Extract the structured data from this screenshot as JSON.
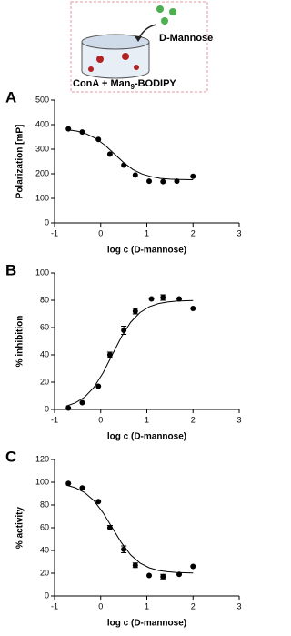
{
  "schematic": {
    "ligand_label": "D-Mannose",
    "complex_label": "ConA + Man",
    "complex_subscript": "9",
    "complex_suffix": "-BODIPY"
  },
  "chart_data": [
    {
      "type": "scatter",
      "panel": "A",
      "xlabel": "log c (D-mannose)",
      "ylabel": "Polarization [mP]",
      "color": "#000000",
      "xlim": [
        -1,
        3
      ],
      "xticks": [
        -1,
        0,
        1,
        2,
        3
      ],
      "ylim": [
        0,
        500
      ],
      "yticks": [
        0,
        100,
        200,
        300,
        400,
        500
      ],
      "x": [
        -0.7,
        -0.4,
        -0.05,
        0.2,
        0.5,
        0.75,
        1.05,
        1.35,
        1.65,
        2.0
      ],
      "values": [
        383,
        370,
        340,
        280,
        235,
        195,
        170,
        168,
        170,
        190
      ],
      "errors": [
        null,
        null,
        null,
        null,
        null,
        null,
        null,
        null,
        null,
        null
      ],
      "fit": {
        "x": [
          -0.7,
          -0.5,
          -0.3,
          -0.1,
          0.1,
          0.3,
          0.5,
          0.7,
          0.9,
          1.1,
          1.3,
          1.5,
          1.7,
          2.0
        ],
        "values": [
          379,
          373,
          362,
          343,
          315,
          280,
          245,
          217,
          199,
          188,
          181,
          178,
          177,
          176
        ]
      }
    },
    {
      "type": "scatter",
      "panel": "B",
      "xlabel": "log c (D-mannose)",
      "ylabel": "% inhibition",
      "color": "#000000",
      "xlim": [
        -1,
        3
      ],
      "xticks": [
        -1,
        0,
        1,
        2,
        3
      ],
      "ylim": [
        0,
        100
      ],
      "yticks": [
        0,
        20,
        40,
        60,
        80,
        100
      ],
      "x": [
        -0.7,
        -0.4,
        -0.05,
        0.2,
        0.5,
        0.75,
        1.1,
        1.35,
        1.7,
        2.0
      ],
      "values": [
        1,
        5,
        17,
        40,
        58,
        72,
        81,
        82,
        81,
        74
      ],
      "errors": [
        null,
        null,
        null,
        2,
        3,
        2,
        null,
        2,
        null,
        null
      ],
      "fit": {
        "x": [
          -0.75,
          -0.55,
          -0.35,
          -0.15,
          0.05,
          0.25,
          0.45,
          0.65,
          0.85,
          1.05,
          1.25,
          1.45,
          1.65,
          2.0
        ],
        "values": [
          2.4,
          4.8,
          9.0,
          16.0,
          26.7,
          40,
          53.3,
          63.9,
          71.0,
          75.2,
          77.6,
          78.7,
          79.4,
          79.8
        ]
      }
    },
    {
      "type": "scatter",
      "panel": "C",
      "xlabel": "log c (D-mannose)",
      "ylabel": "% activity",
      "color": "#000000",
      "xlim": [
        -1,
        3
      ],
      "xticks": [
        -1,
        0,
        1,
        2,
        3
      ],
      "ylim": [
        0,
        120
      ],
      "yticks": [
        0,
        20,
        40,
        60,
        80,
        100,
        120
      ],
      "x": [
        -0.7,
        -0.4,
        -0.05,
        0.2,
        0.5,
        0.75,
        1.05,
        1.35,
        1.7,
        2.0
      ],
      "values": [
        99,
        95,
        83,
        60,
        41,
        27,
        18,
        17,
        19,
        26
      ],
      "errors": [
        null,
        null,
        null,
        2,
        3,
        2,
        null,
        2,
        null,
        null
      ],
      "fit": {
        "x": [
          -0.75,
          -0.55,
          -0.35,
          -0.15,
          0.05,
          0.25,
          0.45,
          0.65,
          0.85,
          1.05,
          1.25,
          1.45,
          1.65,
          2.0
        ],
        "values": [
          97.6,
          95.2,
          91,
          84,
          73.3,
          60,
          46.7,
          36.1,
          29,
          24.8,
          22.4,
          21.3,
          20.6,
          20.2
        ]
      }
    }
  ]
}
